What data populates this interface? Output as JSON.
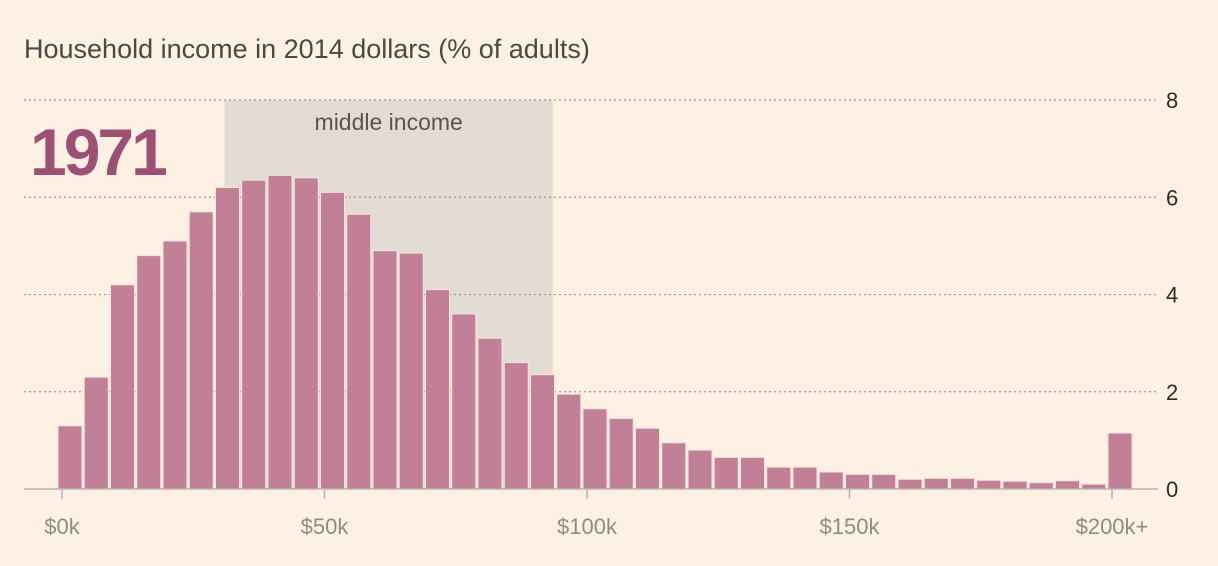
{
  "chart_data": {
    "type": "bar",
    "title": "Household income in 2014 dollars (% of adults)",
    "year_label": "1971",
    "highlight_band": {
      "label": "middle income",
      "x_range": [
        32.5,
        95
      ]
    },
    "x": [
      0,
      5,
      10,
      15,
      20,
      25,
      30,
      35,
      40,
      45,
      50,
      55,
      60,
      65,
      70,
      75,
      80,
      85,
      90,
      95,
      100,
      105,
      110,
      115,
      120,
      125,
      130,
      135,
      140,
      145,
      150,
      155,
      160,
      165,
      170,
      175,
      180,
      185,
      190,
      195,
      200
    ],
    "values": [
      1.3,
      2.3,
      4.2,
      4.8,
      5.1,
      5.7,
      6.2,
      6.35,
      6.45,
      6.4,
      6.1,
      5.65,
      4.9,
      4.85,
      4.1,
      3.6,
      3.1,
      2.6,
      2.35,
      1.95,
      1.65,
      1.45,
      1.25,
      0.95,
      0.8,
      0.65,
      0.65,
      0.45,
      0.45,
      0.35,
      0.3,
      0.3,
      0.2,
      0.22,
      0.22,
      0.18,
      0.16,
      0.13,
      0.17,
      0.1,
      1.15
    ],
    "ylim": [
      0,
      8
    ],
    "y_ticks": [
      "0",
      "2",
      "4",
      "6",
      "8"
    ],
    "x_ticks": [
      {
        "value": 0,
        "label": "$0k"
      },
      {
        "value": 50,
        "label": "$50k"
      },
      {
        "value": 100,
        "label": "$100k"
      },
      {
        "value": 150,
        "label": "$150k"
      },
      {
        "value": 200,
        "label": "$200k+"
      }
    ],
    "grid": true,
    "colors": {
      "background": "#fdf1e3",
      "bar": "#c17f98",
      "bar_stroke": "#f6e4d8",
      "band": "#e3dcd4",
      "year": "#9e4f74",
      "grid": "#9c9894",
      "axis": "#b9b3ae"
    }
  }
}
